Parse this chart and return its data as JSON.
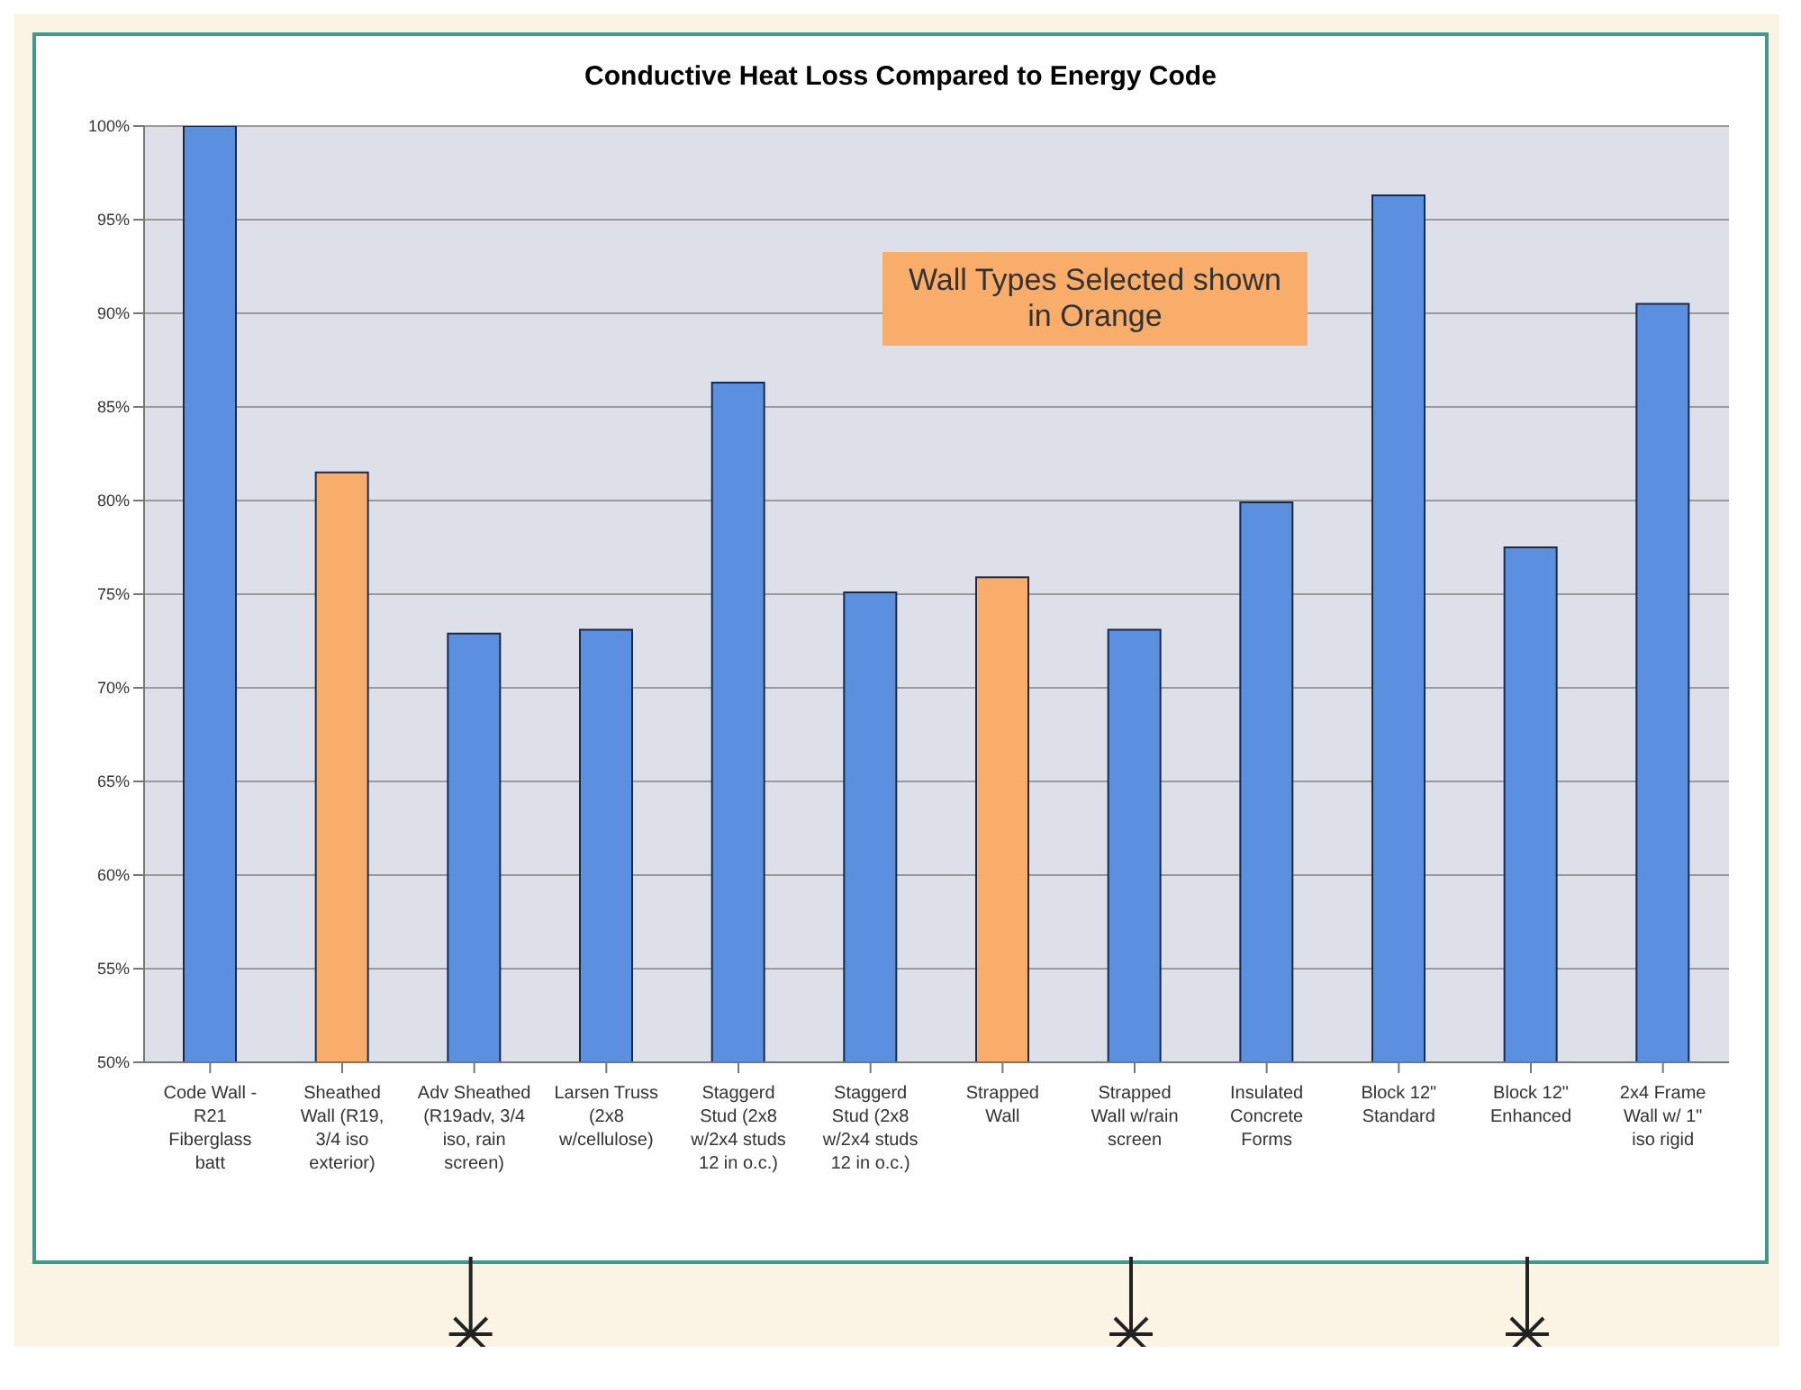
{
  "chart_data": {
    "type": "bar",
    "title": "Conductive Heat Loss Compared to Energy Code",
    "categories": [
      "Code Wall - R21 Fiberglass batt",
      "Sheathed Wall (R19, 3/4 iso exterior)",
      "Adv Sheathed (R19adv, 3/4 iso, rain screen)",
      "Larsen Truss (2x8 w/cellulose)",
      "Staggerd Stud (2x8 w/2x4 studs 12 in o.c.)",
      "Staggerd Stud (2x8 w/2x4 studs 12 in o.c.)",
      "Strapped Wall",
      "Strapped Wall w/rain screen",
      "Insulated Concrete Forms",
      "Block 12\" Standard",
      "Block 12\" Enhanced",
      "2x4 Frame Wall w/ 1\" iso rigid"
    ],
    "values": [
      100,
      81.5,
      72.9,
      73.1,
      86.3,
      75.1,
      75.9,
      73.1,
      79.9,
      96.3,
      77.5,
      90.5
    ],
    "colors": [
      "#5b8fe0",
      "#f9ad6b",
      "#5b8fe0",
      "#5b8fe0",
      "#5b8fe0",
      "#5b8fe0",
      "#f9ad6b",
      "#5b8fe0",
      "#5b8fe0",
      "#5b8fe0",
      "#5b8fe0",
      "#5b8fe0"
    ],
    "ylim": [
      50,
      100
    ],
    "yticks": [
      {
        "value": 50,
        "label": "50%"
      },
      {
        "value": 55,
        "label": "55%"
      },
      {
        "value": 60,
        "label": "60%"
      },
      {
        "value": 65,
        "label": "65%"
      },
      {
        "value": 70,
        "label": "70%"
      },
      {
        "value": 75,
        "label": "75%"
      },
      {
        "value": 80,
        "label": "80%"
      },
      {
        "value": 85,
        "label": "85%"
      },
      {
        "value": 90,
        "label": "90%"
      },
      {
        "value": 95,
        "label": "95%"
      },
      {
        "value": 100,
        "label": "100%"
      }
    ],
    "grid": "y",
    "legend": false,
    "annotations": [
      "Wall Types Selected shown in Orange"
    ]
  }
}
